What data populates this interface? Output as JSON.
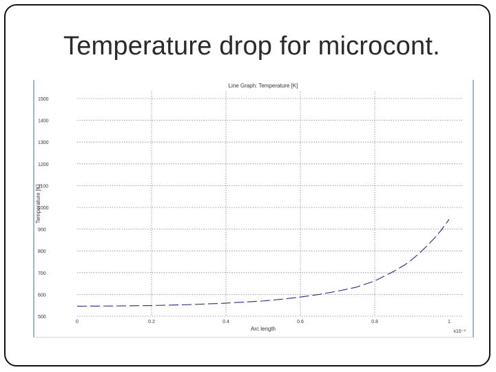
{
  "slide": {
    "title": "Temperature drop for microcont."
  },
  "chart_data": {
    "type": "line",
    "title": "Line Graph: Temperature [K]",
    "xlabel": "Arc length",
    "ylabel": "Temperature [K]",
    "x_multiplier_label": "x10⁻³",
    "xlim": [
      0,
      1
    ],
    "ylim": [
      500,
      1500
    ],
    "x_ticks": [
      0,
      0.2,
      0.4,
      0.6,
      0.8,
      1
    ],
    "x_tick_labels": [
      "0",
      "0.2",
      "0.4",
      "0.6",
      "0.8",
      "1"
    ],
    "y_ticks": [
      500,
      600,
      700,
      800,
      900,
      1000,
      1100,
      1200,
      1300,
      1400,
      1500
    ],
    "y_tick_labels": [
      "500",
      "600",
      "700",
      "800",
      "900",
      "1000",
      "1100",
      "1200",
      "1300",
      "1400",
      "1500"
    ],
    "grid": true,
    "line_style": "dashed",
    "color": "#1f2a9a",
    "series": [
      {
        "x": [
          0.0,
          0.1,
          0.2,
          0.3,
          0.4,
          0.5,
          0.55,
          0.6,
          0.65,
          0.7,
          0.75,
          0.8,
          0.85,
          0.88,
          0.9,
          0.92,
          0.94,
          0.96,
          0.98,
          1.0
        ],
        "y": [
          546,
          547,
          549,
          553,
          560,
          570,
          578,
          588,
          600,
          615,
          633,
          662,
          705,
          735,
          760,
          790,
          822,
          858,
          898,
          945
        ]
      }
    ]
  }
}
